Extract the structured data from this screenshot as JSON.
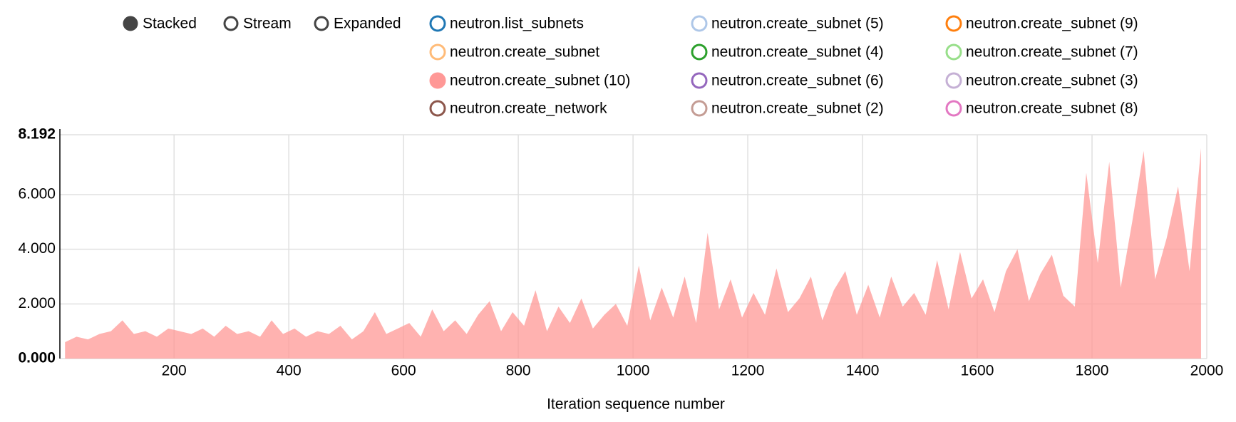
{
  "chart_data": {
    "type": "area",
    "stacked": true,
    "controls": [
      "Stacked",
      "Stream",
      "Expanded"
    ],
    "selected_control": "Stacked",
    "x_label": "Iteration sequence number",
    "xlim": [
      1,
      2000
    ],
    "xticks": [
      200,
      400,
      600,
      800,
      1000,
      1200,
      1400,
      1600,
      1800,
      2000
    ],
    "ylim": [
      0,
      8.192
    ],
    "yticks": [
      {
        "value": 0,
        "label": "0.000"
      },
      {
        "value": 2,
        "label": "2.000"
      },
      {
        "value": 4,
        "label": "4.000"
      },
      {
        "value": 6,
        "label": "6.000"
      },
      {
        "value": 8.192,
        "label": "8.192"
      }
    ],
    "grid": true,
    "x": [
      10,
      30,
      50,
      70,
      90,
      110,
      130,
      150,
      170,
      190,
      210,
      230,
      250,
      270,
      290,
      310,
      330,
      350,
      370,
      390,
      410,
      430,
      450,
      470,
      490,
      510,
      530,
      550,
      570,
      590,
      610,
      630,
      650,
      670,
      690,
      710,
      730,
      750,
      770,
      790,
      810,
      830,
      850,
      870,
      890,
      910,
      930,
      950,
      970,
      990,
      1010,
      1030,
      1050,
      1070,
      1090,
      1110,
      1130,
      1150,
      1170,
      1190,
      1210,
      1230,
      1250,
      1270,
      1290,
      1310,
      1330,
      1350,
      1370,
      1390,
      1410,
      1430,
      1450,
      1470,
      1490,
      1510,
      1530,
      1550,
      1570,
      1590,
      1610,
      1630,
      1650,
      1670,
      1690,
      1710,
      1730,
      1750,
      1770,
      1790,
      1810,
      1830,
      1850,
      1870,
      1890,
      1910,
      1930,
      1950,
      1970,
      1990
    ],
    "series": [
      {
        "name": "neutron.list_subnets",
        "color": "#1f77b4",
        "disabled": true
      },
      {
        "name": "neutron.create_subnet (5)",
        "color": "#aec7e8",
        "disabled": true
      },
      {
        "name": "neutron.create_subnet (9)",
        "color": "#ff7f0e",
        "disabled": true
      },
      {
        "name": "neutron.create_subnet",
        "color": "#ffbb78",
        "disabled": true
      },
      {
        "name": "neutron.create_subnet (4)",
        "color": "#2ca02c",
        "disabled": true
      },
      {
        "name": "neutron.create_subnet (7)",
        "color": "#98df8a",
        "disabled": true
      },
      {
        "name": "neutron.create_subnet (10)",
        "color": "#ff9896",
        "disabled": false,
        "values": [
          0.6,
          0.8,
          0.7,
          0.9,
          1.0,
          1.4,
          0.9,
          1.0,
          0.8,
          1.1,
          1.0,
          0.9,
          1.1,
          0.8,
          1.2,
          0.9,
          1.0,
          0.8,
          1.4,
          0.9,
          1.1,
          0.8,
          1.0,
          0.9,
          1.2,
          0.7,
          1.0,
          1.7,
          0.9,
          1.1,
          1.3,
          0.8,
          1.8,
          1.0,
          1.4,
          0.9,
          1.6,
          2.1,
          1.0,
          1.7,
          1.2,
          2.5,
          1.0,
          1.9,
          1.3,
          2.2,
          1.1,
          1.6,
          2.0,
          1.2,
          3.4,
          1.4,
          2.6,
          1.5,
          3.0,
          1.3,
          4.6,
          1.8,
          2.9,
          1.5,
          2.4,
          1.6,
          3.3,
          1.7,
          2.2,
          3.0,
          1.4,
          2.5,
          3.2,
          1.6,
          2.7,
          1.5,
          3.0,
          1.9,
          2.4,
          1.6,
          3.6,
          1.8,
          3.9,
          2.2,
          2.9,
          1.7,
          3.2,
          4.0,
          2.1,
          3.1,
          3.8,
          2.3,
          1.9,
          6.8,
          3.5,
          7.2,
          2.6,
          5.0,
          7.6,
          2.9,
          4.4,
          6.3,
          3.2,
          7.7
        ]
      },
      {
        "name": "neutron.create_subnet (6)",
        "color": "#9467bd",
        "disabled": true
      },
      {
        "name": "neutron.create_subnet (3)",
        "color": "#c5b0d5",
        "disabled": true
      },
      {
        "name": "neutron.create_network",
        "color": "#8c564b",
        "disabled": true
      },
      {
        "name": "neutron.create_subnet (2)",
        "color": "#c49c94",
        "disabled": true
      },
      {
        "name": "neutron.create_subnet (8)",
        "color": "#e377c2",
        "disabled": true
      }
    ]
  }
}
